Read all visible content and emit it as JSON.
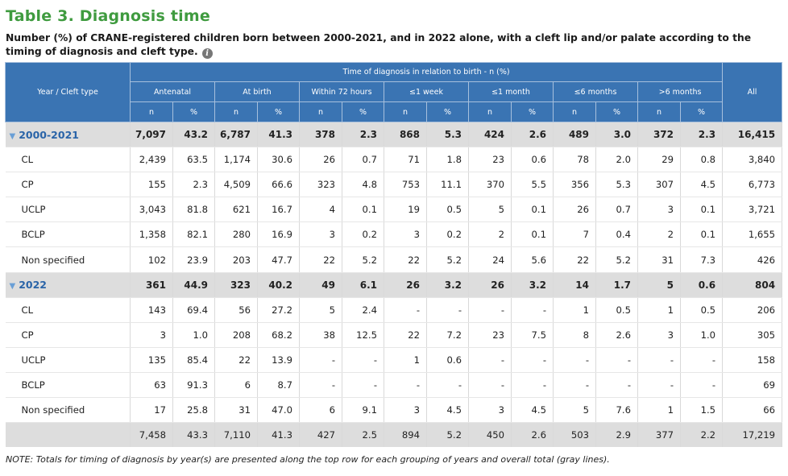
{
  "title": "Table 3. Diagnosis time",
  "subtitle": "Number (%) of CRANE-registered children born between 2000-2021, and in 2022 alone, with a cleft lip and/or palate according to the timing of diagnosis and cleft type.",
  "info_icon": "info-icon",
  "table": {
    "row_header": "Year / Cleft type",
    "super_header": "Time of diagnosis in relation to birth - n (%)",
    "all_header": "All",
    "timing_headers": [
      "Antenatal",
      "At birth",
      "Within 72 hours",
      "≤1 week",
      "≤1 month",
      "≤6 months",
      ">6 months"
    ],
    "n_label": "n",
    "pct_label": "%",
    "groups": [
      {
        "label": "2000-2021",
        "values": [
          "7,097",
          "43.2",
          "6,787",
          "41.3",
          "378",
          "2.3",
          "868",
          "5.3",
          "424",
          "2.6",
          "489",
          "3.0",
          "372",
          "2.3",
          "16,415"
        ],
        "rows": [
          {
            "label": "CL",
            "values": [
              "2,439",
              "63.5",
              "1,174",
              "30.6",
              "26",
              "0.7",
              "71",
              "1.8",
              "23",
              "0.6",
              "78",
              "2.0",
              "29",
              "0.8",
              "3,840"
            ]
          },
          {
            "label": "CP",
            "values": [
              "155",
              "2.3",
              "4,509",
              "66.6",
              "323",
              "4.8",
              "753",
              "11.1",
              "370",
              "5.5",
              "356",
              "5.3",
              "307",
              "4.5",
              "6,773"
            ]
          },
          {
            "label": "UCLP",
            "values": [
              "3,043",
              "81.8",
              "621",
              "16.7",
              "4",
              "0.1",
              "19",
              "0.5",
              "5",
              "0.1",
              "26",
              "0.7",
              "3",
              "0.1",
              "3,721"
            ]
          },
          {
            "label": "BCLP",
            "values": [
              "1,358",
              "82.1",
              "280",
              "16.9",
              "3",
              "0.2",
              "3",
              "0.2",
              "2",
              "0.1",
              "7",
              "0.4",
              "2",
              "0.1",
              "1,655"
            ]
          },
          {
            "label": "Non specified",
            "values": [
              "102",
              "23.9",
              "203",
              "47.7",
              "22",
              "5.2",
              "22",
              "5.2",
              "24",
              "5.6",
              "22",
              "5.2",
              "31",
              "7.3",
              "426"
            ]
          }
        ]
      },
      {
        "label": "2022",
        "values": [
          "361",
          "44.9",
          "323",
          "40.2",
          "49",
          "6.1",
          "26",
          "3.2",
          "26",
          "3.2",
          "14",
          "1.7",
          "5",
          "0.6",
          "804"
        ],
        "rows": [
          {
            "label": "CL",
            "values": [
              "143",
              "69.4",
              "56",
              "27.2",
              "5",
              "2.4",
              "-",
              "-",
              "-",
              "-",
              "1",
              "0.5",
              "1",
              "0.5",
              "206"
            ]
          },
          {
            "label": "CP",
            "values": [
              "3",
              "1.0",
              "208",
              "68.2",
              "38",
              "12.5",
              "22",
              "7.2",
              "23",
              "7.5",
              "8",
              "2.6",
              "3",
              "1.0",
              "305"
            ]
          },
          {
            "label": "UCLP",
            "values": [
              "135",
              "85.4",
              "22",
              "13.9",
              "-",
              "-",
              "1",
              "0.6",
              "-",
              "-",
              "-",
              "-",
              "-",
              "-",
              "158"
            ]
          },
          {
            "label": "BCLP",
            "values": [
              "63",
              "91.3",
              "6",
              "8.7",
              "-",
              "-",
              "-",
              "-",
              "-",
              "-",
              "-",
              "-",
              "-",
              "-",
              "69"
            ]
          },
          {
            "label": "Non specified",
            "values": [
              "17",
              "25.8",
              "31",
              "47.0",
              "6",
              "9.1",
              "3",
              "4.5",
              "3",
              "4.5",
              "5",
              "7.6",
              "1",
              "1.5",
              "66"
            ]
          }
        ]
      }
    ],
    "total_row": {
      "label": "",
      "values": [
        "7,458",
        "43.3",
        "7,110",
        "41.3",
        "427",
        "2.5",
        "894",
        "5.2",
        "450",
        "2.6",
        "503",
        "2.9",
        "377",
        "2.2",
        "17,219"
      ]
    }
  },
  "note": "NOTE: Totals for timing of diagnosis by year(s) are presented along the top row for each grouping of years and overall total (gray lines).",
  "colors": {
    "title_green": "#3f9b3f",
    "header_blue": "#3a74b3",
    "group_label_blue": "#2a64a8",
    "group_row_gray": "#dddddd"
  }
}
